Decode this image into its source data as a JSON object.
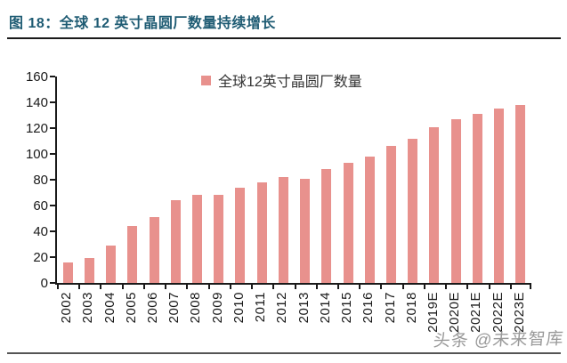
{
  "header": {
    "figure_title": "图 18：全球 12 英寸晶圆厂数量持续增长"
  },
  "watermark": {
    "text": "头条 @未来智库"
  },
  "colors": {
    "bar": "#e8918d",
    "title": "#1e5b73",
    "axis": "#1a1a1a"
  },
  "chart_data": {
    "type": "bar",
    "title": "",
    "legend": "全球12英寸晶圆厂数量",
    "legend_position": "top-center",
    "categories": [
      "2002",
      "2003",
      "2004",
      "2005",
      "2006",
      "2007",
      "2008",
      "2009",
      "2010",
      "2011",
      "2012",
      "2013",
      "2014",
      "2015",
      "2016",
      "2017",
      "2018",
      "2019E",
      "2020E",
      "2021E",
      "2022E",
      "2023E"
    ],
    "values": [
      16,
      19,
      29,
      44,
      51,
      64,
      68,
      68,
      74,
      78,
      82,
      81,
      88,
      93,
      98,
      106,
      112,
      121,
      127,
      131,
      135,
      138
    ],
    "xlabel": "",
    "ylabel": "",
    "ylim": [
      0,
      160
    ],
    "ytick_step": 20,
    "grid": false,
    "bar_color": "#e8918d"
  }
}
